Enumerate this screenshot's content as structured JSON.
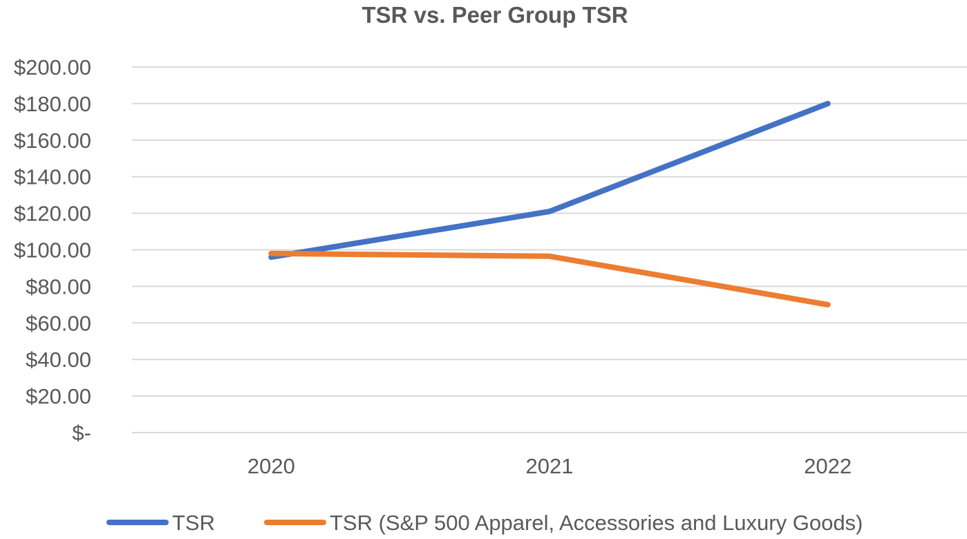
{
  "chart_data": {
    "type": "line",
    "title": "TSR vs. Peer Group TSR",
    "xlabel": "",
    "ylabel": "",
    "categories": [
      "2020",
      "2021",
      "2022"
    ],
    "ylim": [
      0,
      200
    ],
    "y_ticks": [
      0,
      20,
      40,
      60,
      80,
      100,
      120,
      140,
      160,
      180,
      200
    ],
    "y_tick_labels": [
      "$-",
      "$20.00",
      "$40.00",
      "$60.00",
      "$80.00",
      "$100.00",
      "$120.00",
      "$140.00",
      "$160.00",
      "$180.00",
      "$200.00"
    ],
    "grid": true,
    "legend_position": "bottom",
    "series": [
      {
        "name": "TSR",
        "color": "#4472C4",
        "values": [
          96,
          121,
          180
        ]
      },
      {
        "name": "TSR (S&P 500 Apparel, Accessories and Luxury Goods)",
        "color": "#ED7D31",
        "values": [
          98,
          96.5,
          70
        ]
      }
    ]
  }
}
